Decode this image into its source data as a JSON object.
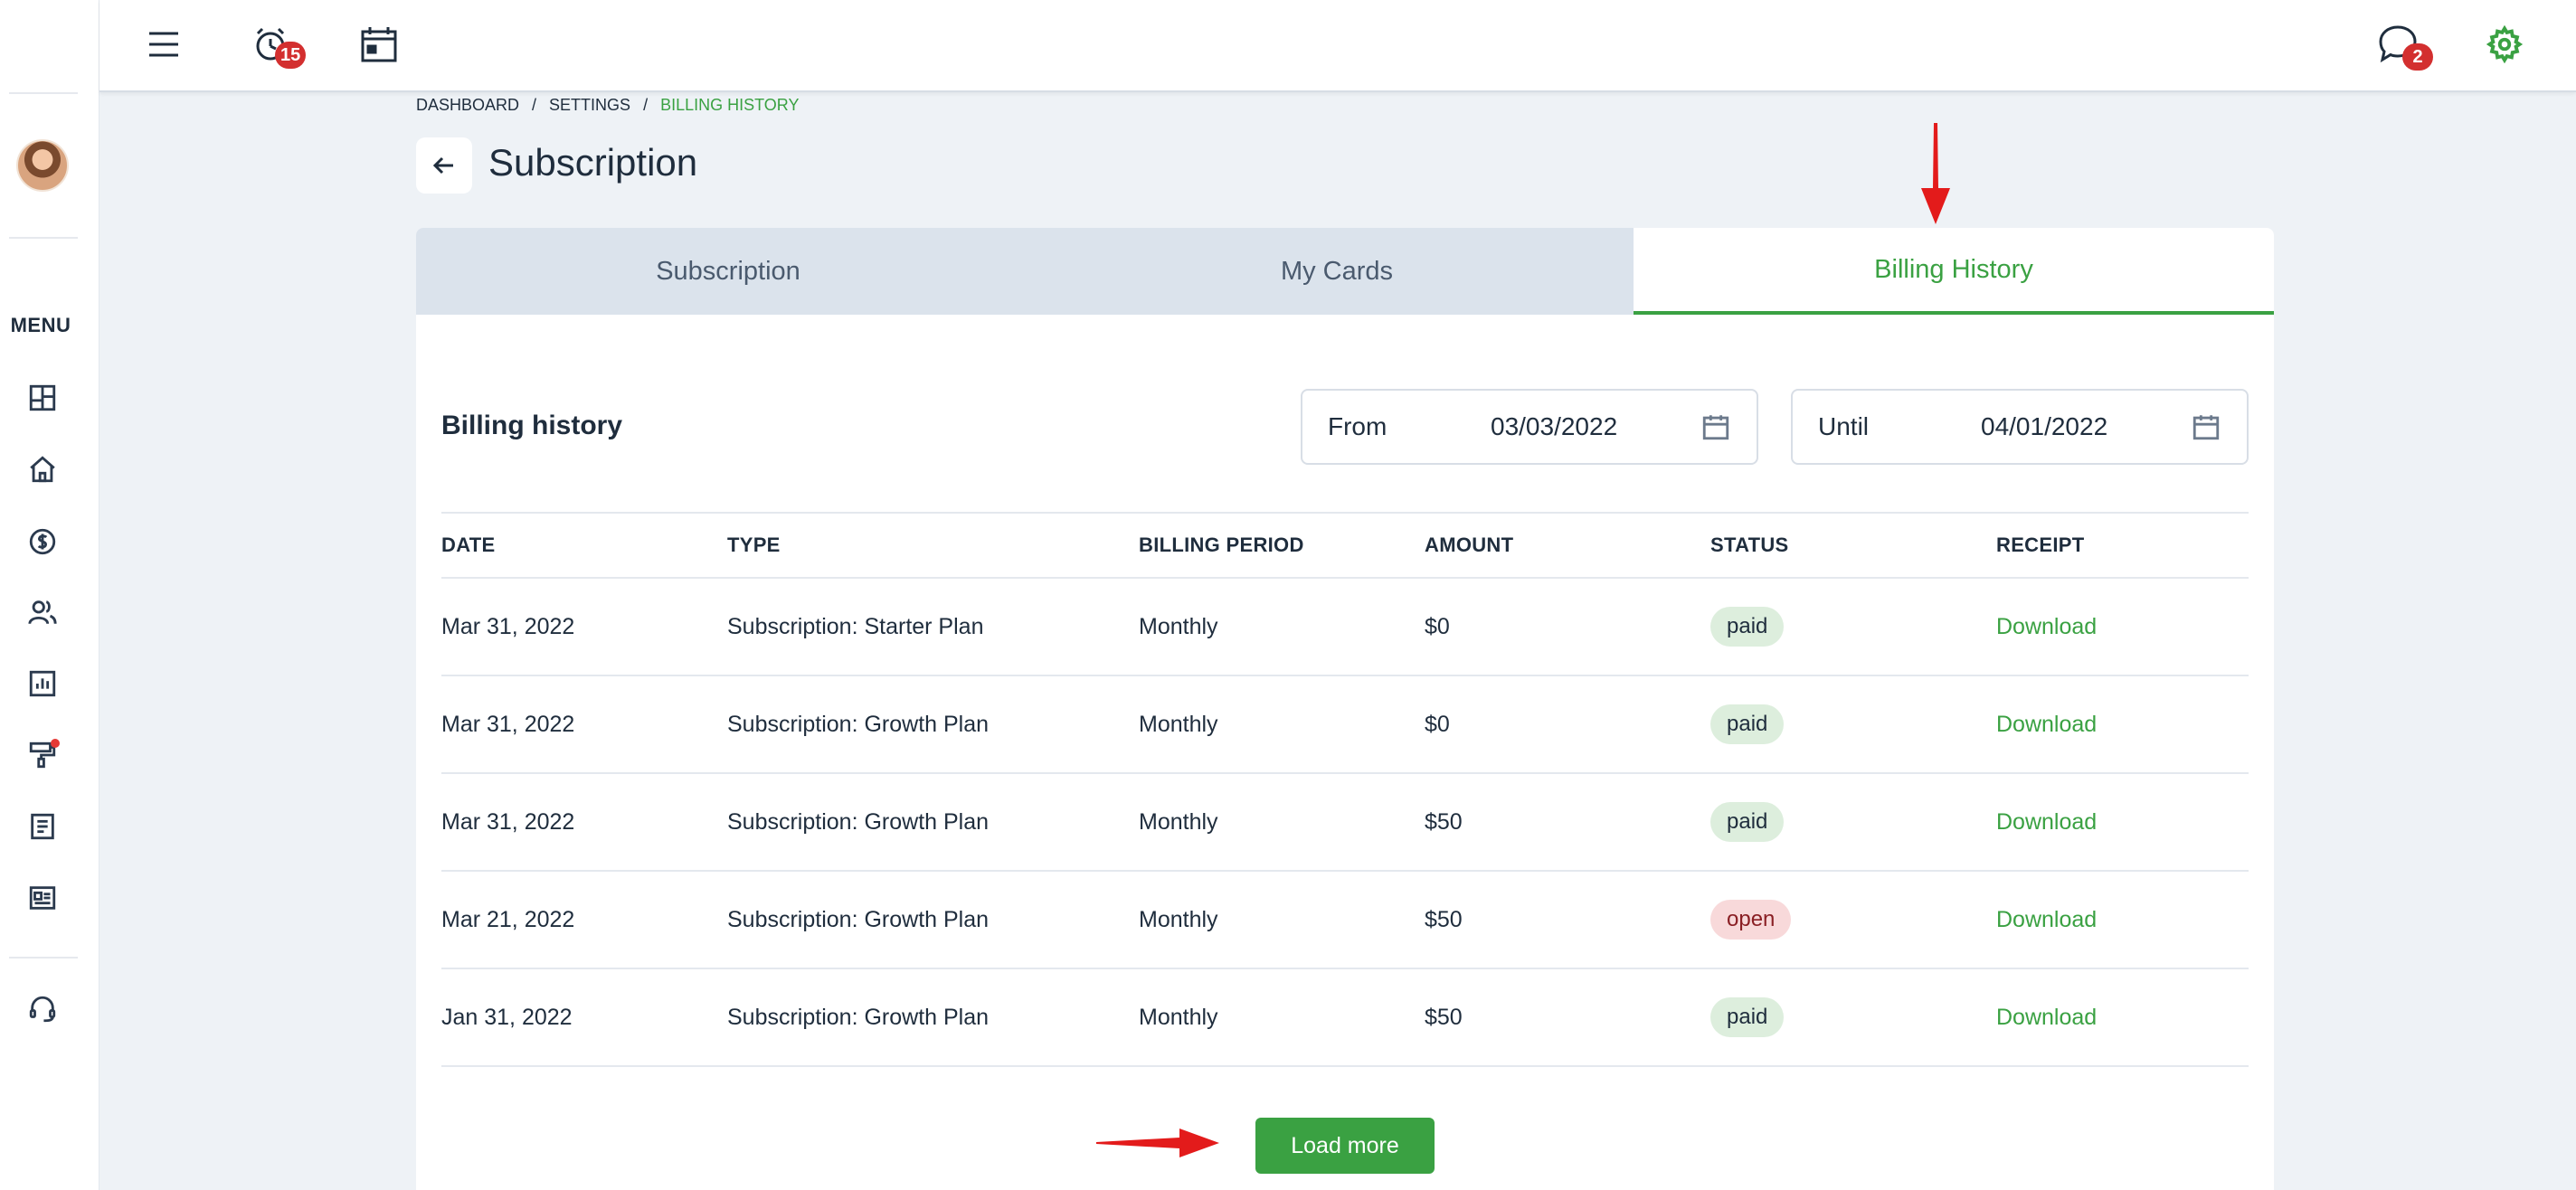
{
  "sidebar": {
    "menu_label": "MENU",
    "items": [
      {
        "icon": "dashboard-icon"
      },
      {
        "icon": "home-icon"
      },
      {
        "icon": "dollar-icon"
      },
      {
        "icon": "users-icon"
      },
      {
        "icon": "chart-icon"
      },
      {
        "icon": "paint-roller-icon",
        "notification_dot": true
      },
      {
        "icon": "document-icon"
      },
      {
        "icon": "newspaper-icon"
      },
      {
        "icon": "headset-icon"
      }
    ]
  },
  "topbar": {
    "alarm_badge": "15",
    "chat_badge": "2"
  },
  "breadcrumb": {
    "items": [
      "DASHBOARD",
      "SETTINGS",
      "BILLING HISTORY"
    ],
    "separator": "/"
  },
  "page": {
    "title": "Subscription"
  },
  "tabs": [
    {
      "label": "Subscription",
      "active": false
    },
    {
      "label": "My Cards",
      "active": false
    },
    {
      "label": "Billing History",
      "active": true
    }
  ],
  "billing": {
    "section_title": "Billing history",
    "from_label": "From",
    "from_value": "03/03/2022",
    "until_label": "Until",
    "until_value": "04/01/2022",
    "columns": [
      "DATE",
      "TYPE",
      "BILLING PERIOD",
      "AMOUNT",
      "STATUS",
      "RECEIPT"
    ],
    "rows": [
      {
        "date": "Mar 31, 2022",
        "type": "Subscription: Starter Plan",
        "period": "Monthly",
        "amount": "$0",
        "status": "paid",
        "receipt": "Download"
      },
      {
        "date": "Mar 31, 2022",
        "type": "Subscription: Growth Plan",
        "period": "Monthly",
        "amount": "$0",
        "status": "paid",
        "receipt": "Download"
      },
      {
        "date": "Mar 31, 2022",
        "type": "Subscription: Growth Plan",
        "period": "Monthly",
        "amount": "$50",
        "status": "paid",
        "receipt": "Download"
      },
      {
        "date": "Mar 21, 2022",
        "type": "Subscription: Growth Plan",
        "period": "Monthly",
        "amount": "$50",
        "status": "open",
        "receipt": "Download"
      },
      {
        "date": "Jan 31, 2022",
        "type": "Subscription: Growth Plan",
        "period": "Monthly",
        "amount": "$50",
        "status": "paid",
        "receipt": "Download"
      }
    ],
    "load_more_label": "Load more"
  },
  "colors": {
    "accent": "#3aa142",
    "annotation_arrow": "#e31b1b",
    "badge": "#d32f2f"
  }
}
